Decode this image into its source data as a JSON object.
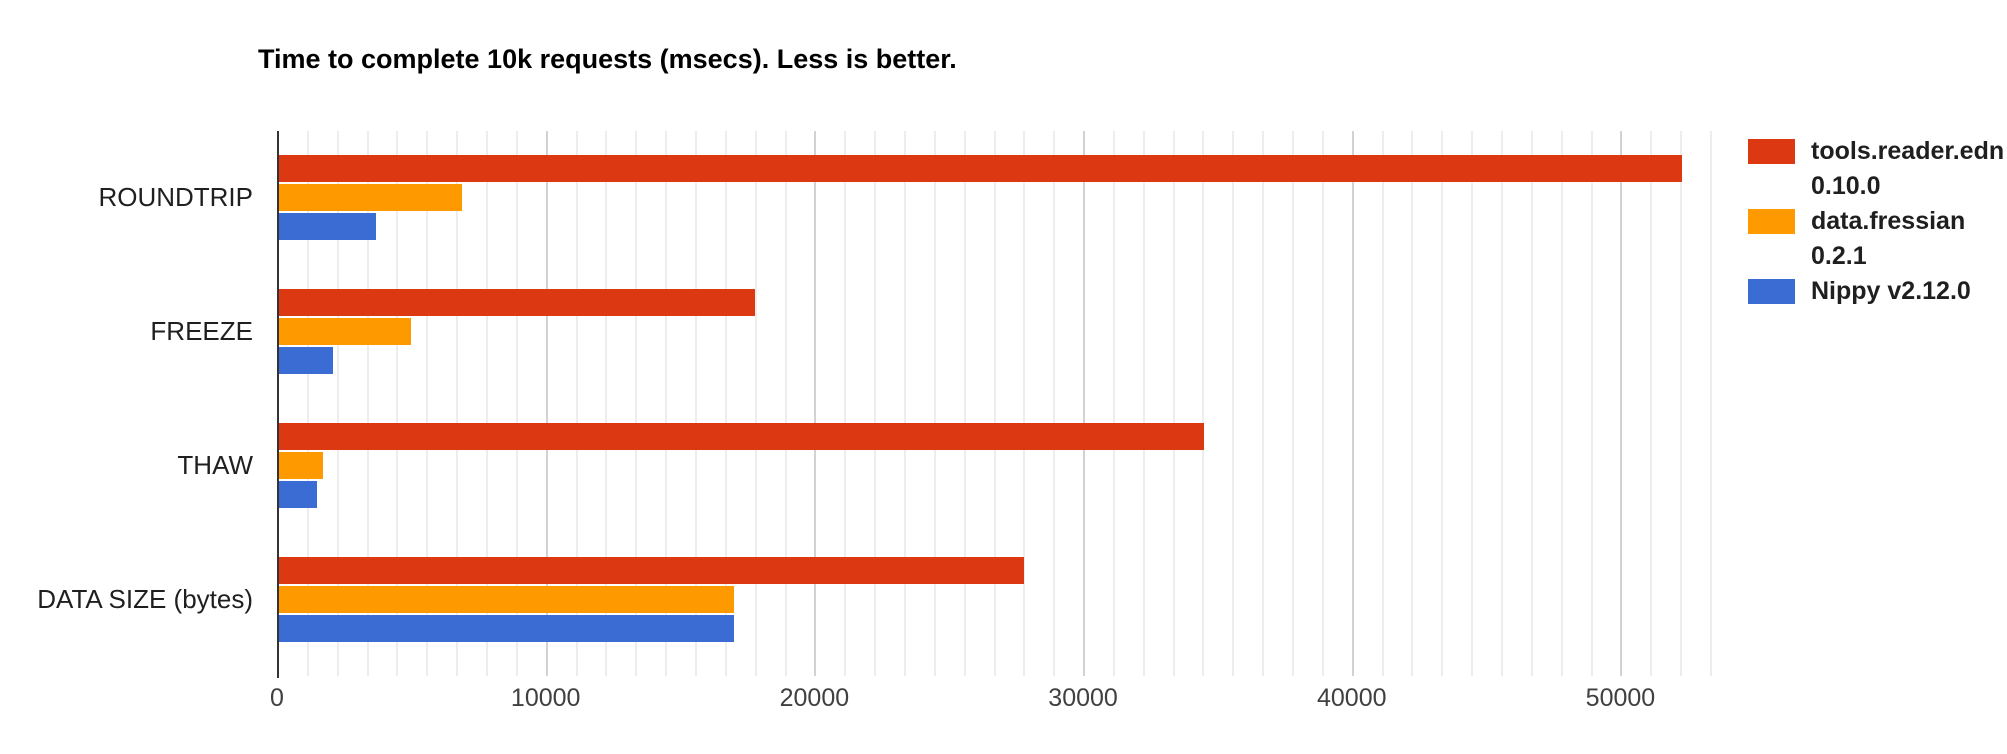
{
  "chart_data": {
    "type": "bar",
    "orientation": "horizontal",
    "title": "Time to complete 10k requests (msecs). Less is better.",
    "categories": [
      "ROUNDTRIP",
      "FREEZE",
      "THAW",
      "DATA SIZE (bytes)"
    ],
    "series": [
      {
        "name": "tools.reader.edn 0.10.0",
        "color": "#dc3912",
        "values": [
          52300,
          17800,
          34500,
          27800
        ]
      },
      {
        "name": "data.fressian 0.2.1",
        "color": "#ff9900",
        "values": [
          6900,
          5000,
          1700,
          17000
        ]
      },
      {
        "name": "Nippy v2.12.0",
        "color": "#3a6cd4",
        "values": [
          3700,
          2100,
          1500,
          17000
        ]
      }
    ],
    "xlim": [
      0,
      53333
    ],
    "x_ticks": [
      0,
      10000,
      20000,
      30000,
      40000,
      50000
    ],
    "x_major_step": 10000,
    "minor_divisions": 9,
    "grid": true,
    "legend_position": "right"
  },
  "legend": {
    "items": [
      {
        "label": "tools.reader.edn 0.10.0",
        "color": "#dc3912"
      },
      {
        "label": "data.fressian 0.2.1",
        "color": "#ff9900"
      },
      {
        "label": "Nippy v2.12.0",
        "color": "#3a6cd4"
      }
    ]
  },
  "colors": {
    "background": "#ffffff",
    "axis_line": "#333333",
    "gridline_minor": "#ededed",
    "gridline_major": "#d2d2d2",
    "title_text": "#000000",
    "category_text": "#1f1f1f",
    "tick_text": "#404040"
  }
}
